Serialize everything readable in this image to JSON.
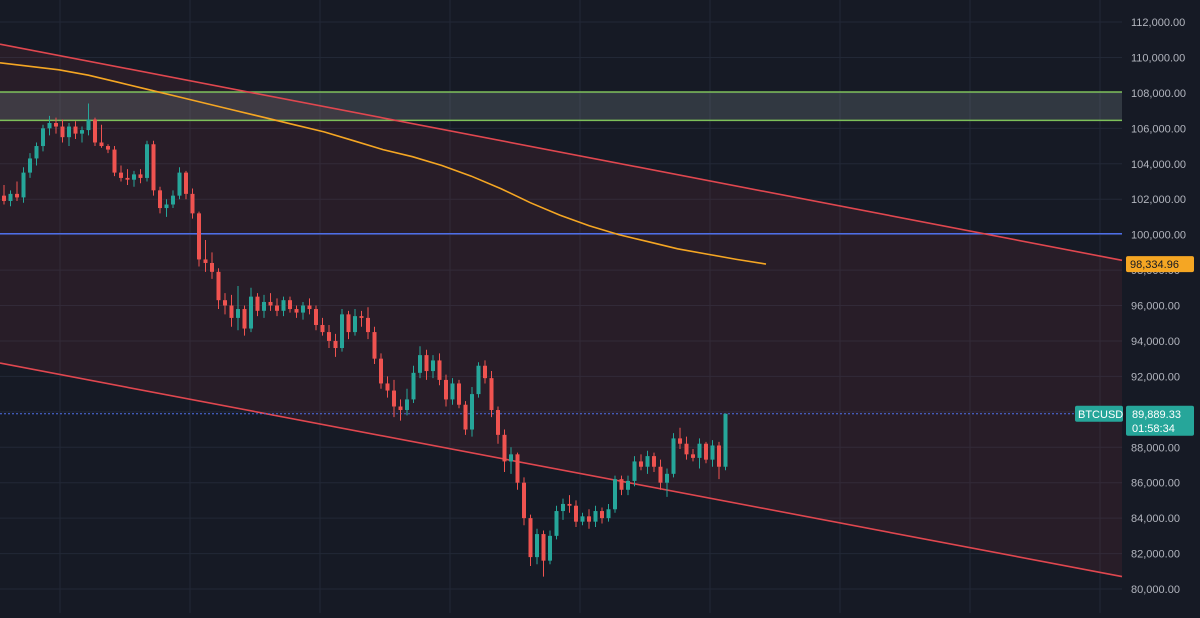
{
  "chart_data": {
    "type": "candlestick",
    "symbol_label": "BTCUSD",
    "countdown": "01:58:34",
    "last_price": 89889.33,
    "last_price_label": "89,889.33",
    "ma_value_label": "98,334.96",
    "ylim": [
      79500,
      113000
    ],
    "grid": true,
    "y_ticks": [
      "112,000.00",
      "110,000.00",
      "108,000.00",
      "106,000.00",
      "104,000.00",
      "102,000.00",
      "100,000.00",
      "98,000.00",
      "96,000.00",
      "94,000.00",
      "92,000.00",
      "90,000.00",
      "88,000.00",
      "86,000.00",
      "84,000.00",
      "82,000.00",
      "80,000.00"
    ],
    "y_tick_values": [
      112000,
      110000,
      108000,
      106000,
      104000,
      102000,
      100000,
      98000,
      96000,
      94000,
      92000,
      90000,
      88000,
      86000,
      84000,
      82000,
      80000
    ],
    "resistance_zone": {
      "top": 108050,
      "bottom": 106450
    },
    "horizontal_level": 100050,
    "channel_upper": {
      "start": 110750,
      "end": 98550
    },
    "channel_lower": {
      "start": 92750,
      "end": 80700
    },
    "moving_average": [
      109700,
      109500,
      109300,
      109000,
      108600,
      108200,
      107800,
      107400,
      107000,
      106600,
      106200,
      105800,
      105300,
      104800,
      104400,
      103900,
      103300,
      102600,
      101800,
      101100,
      100500,
      100000,
      99600,
      99200,
      98900,
      98600,
      98335
    ],
    "colors": {
      "up": "#26a69a",
      "down": "#ef5350",
      "channel": "#e0474f",
      "zone_border": "#7ec05a",
      "level": "#4d6ee8",
      "ma": "#f5a623",
      "background": "#161a25",
      "grid": "#222836",
      "axis_text": "#b2b5be"
    },
    "candles": [
      [
        102200,
        102800,
        101700,
        101900
      ],
      [
        101900,
        102500,
        101600,
        102300
      ],
      [
        102300,
        103000,
        101900,
        102100
      ],
      [
        102100,
        103800,
        101800,
        103500
      ],
      [
        103500,
        104600,
        103200,
        104300
      ],
      [
        104300,
        105200,
        103900,
        105000
      ],
      [
        105000,
        106200,
        104700,
        106000
      ],
      [
        106000,
        106700,
        105600,
        106300
      ],
      [
        106300,
        106600,
        105700,
        106100
      ],
      [
        106100,
        106500,
        105200,
        105500
      ],
      [
        105500,
        106300,
        105000,
        106100
      ],
      [
        106100,
        106400,
        105400,
        105700
      ],
      [
        105700,
        106100,
        105200,
        105900
      ],
      [
        105900,
        107400,
        105600,
        106500
      ],
      [
        106500,
        106600,
        105000,
        105200
      ],
      [
        105200,
        106200,
        104900,
        105000
      ],
      [
        105000,
        105100,
        104600,
        104800
      ],
      [
        104800,
        105000,
        103300,
        103500
      ],
      [
        103500,
        103900,
        103000,
        103200
      ],
      [
        103200,
        103700,
        102800,
        103100
      ],
      [
        103100,
        103600,
        102700,
        103400
      ],
      [
        103400,
        103700,
        102900,
        103200
      ],
      [
        103200,
        105300,
        103000,
        105100
      ],
      [
        105100,
        105300,
        102200,
        102500
      ],
      [
        102500,
        102700,
        101200,
        101500
      ],
      [
        101500,
        102000,
        101000,
        101700
      ],
      [
        101700,
        102500,
        101500,
        102200
      ],
      [
        102200,
        103800,
        102000,
        103500
      ],
      [
        103500,
        103600,
        102000,
        102300
      ],
      [
        102300,
        102600,
        100900,
        101200
      ],
      [
        101200,
        101300,
        98200,
        98600
      ],
      [
        98600,
        99700,
        97900,
        98400
      ],
      [
        98400,
        99000,
        97500,
        97900
      ],
      [
        97900,
        98100,
        95800,
        96300
      ],
      [
        96300,
        96700,
        95500,
        96000
      ],
      [
        96000,
        96600,
        94800,
        95300
      ],
      [
        95300,
        97100,
        94600,
        95800
      ],
      [
        95800,
        96000,
        94300,
        94700
      ],
      [
        94700,
        97000,
        94500,
        96500
      ],
      [
        96500,
        96700,
        95400,
        95700
      ],
      [
        95700,
        96600,
        95300,
        96200
      ],
      [
        96200,
        96700,
        95700,
        96000
      ],
      [
        96000,
        96400,
        95400,
        95700
      ],
      [
        95700,
        96500,
        95400,
        96300
      ],
      [
        96300,
        96500,
        95600,
        95800
      ],
      [
        95800,
        96000,
        95300,
        95600
      ],
      [
        95600,
        96200,
        95200,
        96000
      ],
      [
        96000,
        96400,
        95500,
        95800
      ],
      [
        95800,
        96000,
        94600,
        94900
      ],
      [
        94900,
        95300,
        94300,
        94500
      ],
      [
        94500,
        94900,
        93600,
        94000
      ],
      [
        94000,
        94400,
        93100,
        93600
      ],
      [
        93600,
        95800,
        93400,
        95500
      ],
      [
        95500,
        95700,
        94100,
        94500
      ],
      [
        94500,
        95800,
        94300,
        95400
      ],
      [
        95400,
        95700,
        94800,
        95300
      ],
      [
        95300,
        95900,
        94100,
        94500
      ],
      [
        94500,
        94800,
        92700,
        93000
      ],
      [
        93000,
        93300,
        91300,
        91600
      ],
      [
        91600,
        92000,
        90800,
        91200
      ],
      [
        91200,
        91800,
        89700,
        90300
      ],
      [
        90300,
        90700,
        89500,
        90100
      ],
      [
        90100,
        91300,
        89800,
        90700
      ],
      [
        90700,
        92600,
        90500,
        92200
      ],
      [
        92200,
        93700,
        91900,
        93200
      ],
      [
        93200,
        93500,
        91800,
        92300
      ],
      [
        92300,
        93200,
        91900,
        92900
      ],
      [
        92900,
        93300,
        91500,
        91800
      ],
      [
        91800,
        92100,
        90300,
        90700
      ],
      [
        90700,
        91900,
        90400,
        91600
      ],
      [
        91600,
        91800,
        90200,
        90400
      ],
      [
        90400,
        90600,
        88700,
        89000
      ],
      [
        89000,
        91400,
        88600,
        91000
      ],
      [
        91000,
        92800,
        90800,
        92600
      ],
      [
        92600,
        92900,
        91600,
        91900
      ],
      [
        91900,
        92300,
        89700,
        90100
      ],
      [
        90100,
        90300,
        88200,
        88700
      ],
      [
        88700,
        89000,
        86600,
        87200
      ],
      [
        87200,
        88000,
        86500,
        87600
      ],
      [
        87600,
        87700,
        85600,
        86000
      ],
      [
        86000,
        86300,
        83600,
        84000
      ],
      [
        84000,
        84200,
        81300,
        81800
      ],
      [
        81800,
        83400,
        81400,
        83100
      ],
      [
        83100,
        83300,
        80700,
        81600
      ],
      [
        81600,
        83300,
        81400,
        83000
      ],
      [
        83000,
        84700,
        82800,
        84400
      ],
      [
        84400,
        85100,
        83900,
        84800
      ],
      [
        84800,
        85300,
        84300,
        84700
      ],
      [
        84700,
        85000,
        83500,
        83800
      ],
      [
        83800,
        84300,
        83600,
        84100
      ],
      [
        84100,
        84500,
        83400,
        83800
      ],
      [
        83800,
        84700,
        83500,
        84400
      ],
      [
        84400,
        84600,
        83700,
        84000
      ],
      [
        84000,
        84800,
        83800,
        84500
      ],
      [
        84500,
        86400,
        84300,
        86200
      ],
      [
        86200,
        86400,
        85300,
        85600
      ],
      [
        85600,
        86400,
        85300,
        86100
      ],
      [
        86100,
        87500,
        85800,
        87200
      ],
      [
        87200,
        87600,
        86700,
        86900
      ],
      [
        86900,
        87800,
        86500,
        87500
      ],
      [
        87500,
        87700,
        86600,
        86900
      ],
      [
        86900,
        87300,
        85600,
        86000
      ],
      [
        86000,
        86800,
        85200,
        86500
      ],
      [
        86500,
        88800,
        86300,
        88500
      ],
      [
        88500,
        89100,
        87900,
        88200
      ],
      [
        88200,
        88600,
        87300,
        87600
      ],
      [
        87600,
        87900,
        87200,
        87400
      ],
      [
        87400,
        88500,
        86800,
        88200
      ],
      [
        88200,
        88300,
        87100,
        87300
      ],
      [
        87300,
        88400,
        86900,
        88100
      ],
      [
        88100,
        88300,
        86200,
        86900
      ],
      [
        86900,
        89900,
        86700,
        89889
      ]
    ]
  }
}
